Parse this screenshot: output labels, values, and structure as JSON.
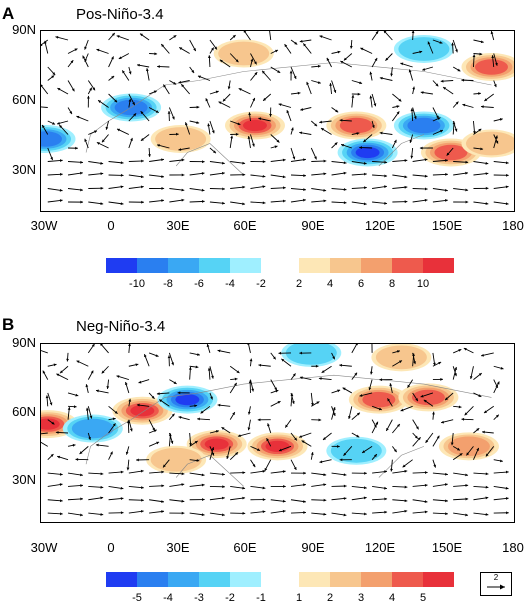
{
  "panels": [
    {
      "letter": "A",
      "title": "Pos-Niño-3.4",
      "lat_ticks": [
        "90N",
        "60N",
        "30N"
      ],
      "lon_ticks": [
        "30W",
        "0",
        "30E",
        "60E",
        "90E",
        "120E",
        "150E",
        "180"
      ],
      "colorbar_labels": [
        "-10",
        "-8",
        "-6",
        "-4",
        "-2",
        "2",
        "4",
        "6",
        "8",
        "10"
      ],
      "anomaly_centers": [
        {
          "lon": -28,
          "lat": 42,
          "sign": "neg",
          "strength": 0.8
        },
        {
          "lon": 10,
          "lat": 56,
          "sign": "neg",
          "strength": 0.8
        },
        {
          "lon": 32,
          "lat": 42,
          "sign": "pos",
          "strength": 0.3
        },
        {
          "lon": 65,
          "lat": 48,
          "sign": "pos",
          "strength": 0.95
        },
        {
          "lon": 110,
          "lat": 48,
          "sign": "pos",
          "strength": 0.8
        },
        {
          "lon": 140,
          "lat": 48,
          "sign": "neg",
          "strength": 0.8
        },
        {
          "lon": 115,
          "lat": 36,
          "sign": "neg",
          "strength": 1.0
        },
        {
          "lon": 152,
          "lat": 36,
          "sign": "pos",
          "strength": 0.7
        },
        {
          "lon": 170,
          "lat": 74,
          "sign": "pos",
          "strength": 0.7
        },
        {
          "lon": 140,
          "lat": 82,
          "sign": "neg",
          "strength": 0.4
        },
        {
          "lon": 60,
          "lat": 80,
          "sign": "pos",
          "strength": 0.3
        },
        {
          "lon": 170,
          "lat": 40,
          "sign": "pos",
          "strength": 0.3
        }
      ]
    },
    {
      "letter": "B",
      "title": "Neg-Niño-3.4",
      "lat_ticks": [
        "90N",
        "60N",
        "30N"
      ],
      "lon_ticks": [
        "30W",
        "0",
        "30E",
        "60E",
        "90E",
        "120E",
        "150E",
        "180"
      ],
      "colorbar_labels": [
        "-5",
        "-4",
        "-3",
        "-2",
        "-1",
        "1",
        "2",
        "3",
        "4",
        "5"
      ],
      "reference_vector_label": "2",
      "anomaly_centers": [
        {
          "lon": -27,
          "lat": 54,
          "sign": "pos",
          "strength": 0.9
        },
        {
          "lon": -7,
          "lat": 52,
          "sign": "neg",
          "strength": 0.6
        },
        {
          "lon": 15,
          "lat": 60,
          "sign": "pos",
          "strength": 0.9
        },
        {
          "lon": 35,
          "lat": 65,
          "sign": "neg",
          "strength": 0.9
        },
        {
          "lon": 48,
          "lat": 45,
          "sign": "pos",
          "strength": 0.95
        },
        {
          "lon": 75,
          "lat": 44,
          "sign": "pos",
          "strength": 0.9
        },
        {
          "lon": 120,
          "lat": 65,
          "sign": "pos",
          "strength": 0.7
        },
        {
          "lon": 142,
          "lat": 66,
          "sign": "pos",
          "strength": 0.75
        },
        {
          "lon": 160,
          "lat": 44,
          "sign": "pos",
          "strength": 0.6
        },
        {
          "lon": 110,
          "lat": 42,
          "sign": "neg",
          "strength": 0.3
        },
        {
          "lon": 90,
          "lat": 86,
          "sign": "neg",
          "strength": 0.4
        },
        {
          "lon": 130,
          "lat": 84,
          "sign": "pos",
          "strength": 0.4
        },
        {
          "lon": 30,
          "lat": 38,
          "sign": "pos",
          "strength": 0.3
        }
      ]
    }
  ],
  "colors": {
    "neg": [
      "#1f3cf2",
      "#2a7ff0",
      "#3aa8f3",
      "#56d3f5",
      "#9fefff"
    ],
    "pos": [
      "#fde7b6",
      "#f7c68e",
      "#f3a06e",
      "#ee5a4d",
      "#e8313a"
    ]
  }
}
